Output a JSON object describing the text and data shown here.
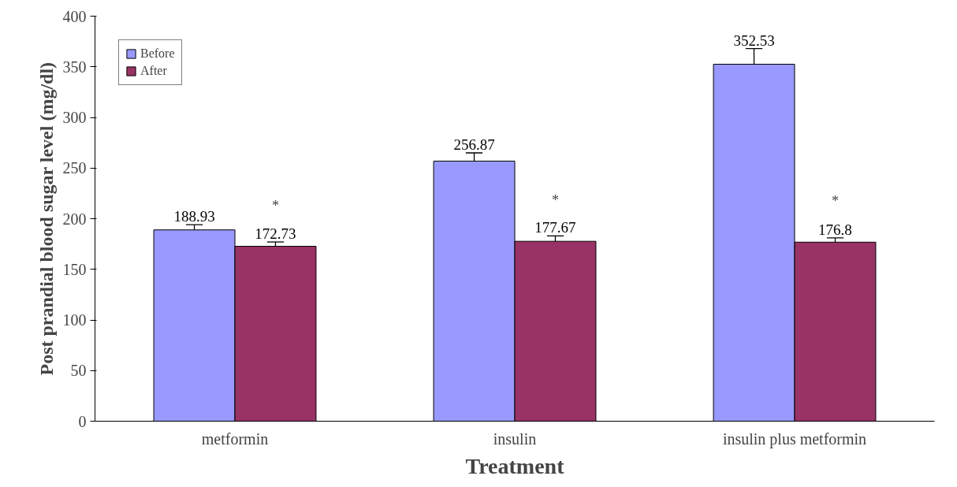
{
  "chart_data": {
    "type": "bar",
    "xlabel": "Treatment",
    "ylabel": "Post prandial blood sugar level (mg/dl)",
    "categories": [
      "metformin",
      "insulin",
      "insulin plus metformin"
    ],
    "series": [
      {
        "name": "Before",
        "color": "#9999ff",
        "values": [
          188.93,
          256.87,
          352.53
        ],
        "errors": [
          [
            188.93,
            194
          ],
          [
            256.87,
            265
          ],
          [
            352.53,
            368
          ]
        ]
      },
      {
        "name": "After",
        "color": "#993366",
        "values": [
          172.73,
          177.67,
          176.8
        ],
        "errors": [
          [
            172.73,
            177
          ],
          [
            177.67,
            183
          ],
          [
            176.8,
            181
          ]
        ]
      }
    ],
    "ylim": [
      0,
      400
    ],
    "yticks": [
      0,
      50,
      100,
      150,
      200,
      250,
      300,
      350,
      400
    ],
    "data_labels": true,
    "legend": "top left",
    "annotations": [
      "*",
      "*",
      "*"
    ]
  }
}
